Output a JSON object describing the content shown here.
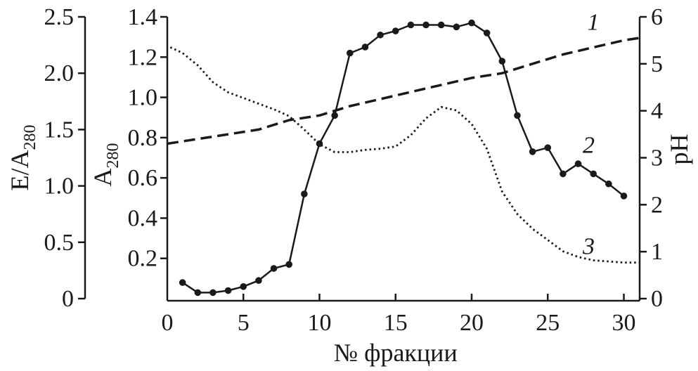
{
  "chart_data": {
    "type": "line",
    "xlabel": "№ фракции",
    "x_ticks": [
      "0",
      "5",
      "10",
      "15",
      "20",
      "25",
      "30"
    ],
    "xlim": [
      0,
      31
    ],
    "y_axes": {
      "e_ratio": {
        "label_main": "E/A",
        "label_sub": "280",
        "ylim": [
          0,
          2.5
        ],
        "ticks": [
          "0",
          "0.5",
          "1.0",
          "1.5",
          "2.0",
          "2.5"
        ],
        "tick_values": [
          0,
          0.5,
          1.0,
          1.5,
          2.0,
          2.5
        ]
      },
      "a280": {
        "label_main": "A",
        "label_sub": "280",
        "ylim": [
          0,
          1.4
        ],
        "ticks": [
          "0.2",
          "0.4",
          "0.6",
          "0.8",
          "1.0",
          "1.2",
          "1.4"
        ],
        "tick_values": [
          0.2,
          0.4,
          0.6,
          0.8,
          1.0,
          1.2,
          1.4
        ]
      },
      "ph": {
        "label_main": "pH",
        "ylim": [
          0,
          6
        ],
        "ticks": [
          "0",
          "1",
          "2",
          "3",
          "4",
          "5",
          "6"
        ],
        "tick_values": [
          0,
          1,
          2,
          3,
          4,
          5,
          6
        ]
      }
    },
    "series": [
      {
        "label": "1",
        "axis": "ph",
        "style": "dashed",
        "x": [
          0,
          2,
          4,
          6,
          8,
          10,
          12,
          14,
          16,
          18,
          20,
          22,
          24,
          26,
          28,
          30,
          31
        ],
        "values": [
          3.3,
          3.4,
          3.5,
          3.6,
          3.8,
          3.9,
          4.1,
          4.25,
          4.4,
          4.55,
          4.7,
          4.8,
          5.0,
          5.2,
          5.35,
          5.5,
          5.55
        ]
      },
      {
        "label": "2",
        "axis": "a280",
        "style": "solid-markers",
        "x": [
          1,
          2,
          3,
          4,
          5,
          6,
          7,
          8,
          9,
          10,
          11,
          12,
          13,
          14,
          15,
          16,
          17,
          18,
          19,
          20,
          21,
          22,
          23,
          24,
          25,
          26,
          27,
          28,
          29,
          30
        ],
        "values": [
          0.08,
          0.03,
          0.03,
          0.04,
          0.06,
          0.09,
          0.15,
          0.17,
          0.52,
          0.77,
          0.91,
          1.22,
          1.25,
          1.31,
          1.33,
          1.36,
          1.36,
          1.36,
          1.35,
          1.37,
          1.32,
          1.18,
          0.91,
          0.73,
          0.75,
          0.62,
          0.67,
          0.62,
          0.57,
          0.51
        ]
      },
      {
        "label": "3",
        "axis": "e_ratio",
        "style": "dotted",
        "x": [
          0.2,
          1,
          2,
          3,
          4,
          5,
          6,
          7,
          8,
          9,
          10,
          11,
          12,
          13,
          14,
          15,
          16,
          17,
          18,
          19,
          20,
          21,
          22,
          23,
          24,
          25,
          26,
          27,
          28,
          29,
          30,
          31
        ],
        "values": [
          2.23,
          2.18,
          2.07,
          1.92,
          1.83,
          1.78,
          1.73,
          1.68,
          1.62,
          1.5,
          1.37,
          1.3,
          1.3,
          1.32,
          1.33,
          1.35,
          1.45,
          1.6,
          1.7,
          1.67,
          1.55,
          1.33,
          0.95,
          0.75,
          0.62,
          0.52,
          0.42,
          0.37,
          0.34,
          0.33,
          0.32,
          0.32
        ]
      }
    ]
  }
}
